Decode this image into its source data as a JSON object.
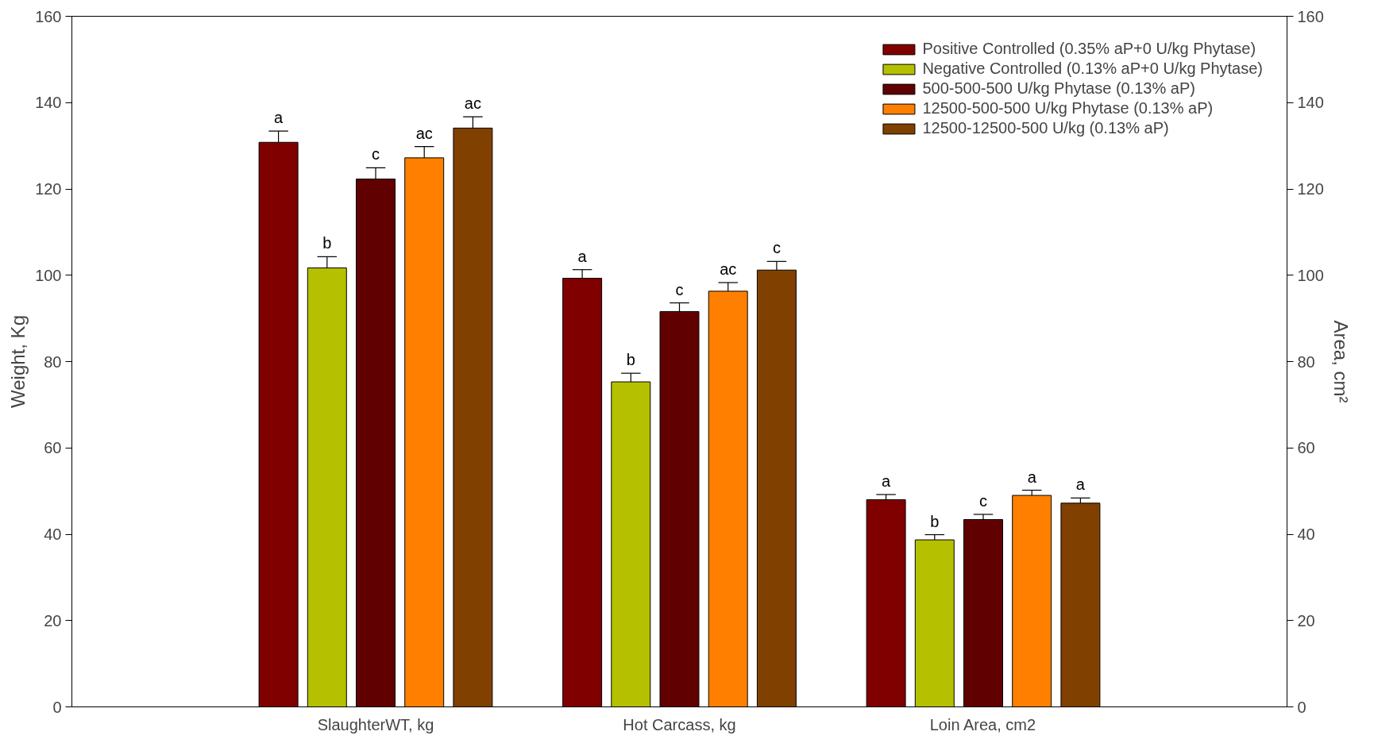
{
  "chart_data": {
    "type": "bar",
    "ylabel": "Weight, Kg",
    "y2label": "Area, cm²",
    "categories": [
      "SlaughterWT, kg",
      "Hot Carcass, kg",
      "Loin Area, cm2"
    ],
    "ylim": [
      0,
      160
    ],
    "yticks": [
      0,
      20,
      40,
      60,
      80,
      100,
      120,
      140,
      160
    ],
    "y2lim": [
      0,
      160
    ],
    "y2ticks": [
      0,
      20,
      40,
      60,
      80,
      100,
      120,
      140,
      160
    ],
    "grid": false,
    "legend": "top right",
    "series": [
      {
        "name": "Positive Controlled (0.35% aP+0 U/kg Phytase)",
        "color": "#800000",
        "values": [
          130.8,
          99.3,
          48.0
        ],
        "errors": [
          2.6,
          2.0,
          1.2
        ],
        "value_labels": [
          "a",
          "a",
          "a"
        ]
      },
      {
        "name": "Negative Controlled (0.13% aP+0 U/kg Phytase)",
        "color": "#b5c000",
        "values": [
          101.7,
          75.3,
          38.7
        ],
        "errors": [
          2.6,
          2.0,
          1.2
        ],
        "value_labels": [
          "b",
          "b",
          "b"
        ]
      },
      {
        "name": "500-500-500 U/kg Phytase (0.13% aP)",
        "color": "#600000",
        "values": [
          122.3,
          91.6,
          43.4
        ],
        "errors": [
          2.6,
          2.0,
          1.2
        ],
        "value_labels": [
          "c",
          "c",
          "c"
        ]
      },
      {
        "name": "12500-500-500 U/kg Phytase (0.13% aP)",
        "color": "#ff8000",
        "values": [
          127.2,
          96.3,
          49.0
        ],
        "errors": [
          2.6,
          2.0,
          1.2
        ],
        "value_labels": [
          "ac",
          "ac",
          "a"
        ]
      },
      {
        "name": "12500-12500-500 U/kg (0.13% aP)",
        "color": "#804000",
        "values": [
          134.1,
          101.2,
          47.2
        ],
        "errors": [
          2.6,
          2.0,
          1.2
        ],
        "value_labels": [
          "ac",
          "c",
          "a"
        ]
      }
    ]
  }
}
